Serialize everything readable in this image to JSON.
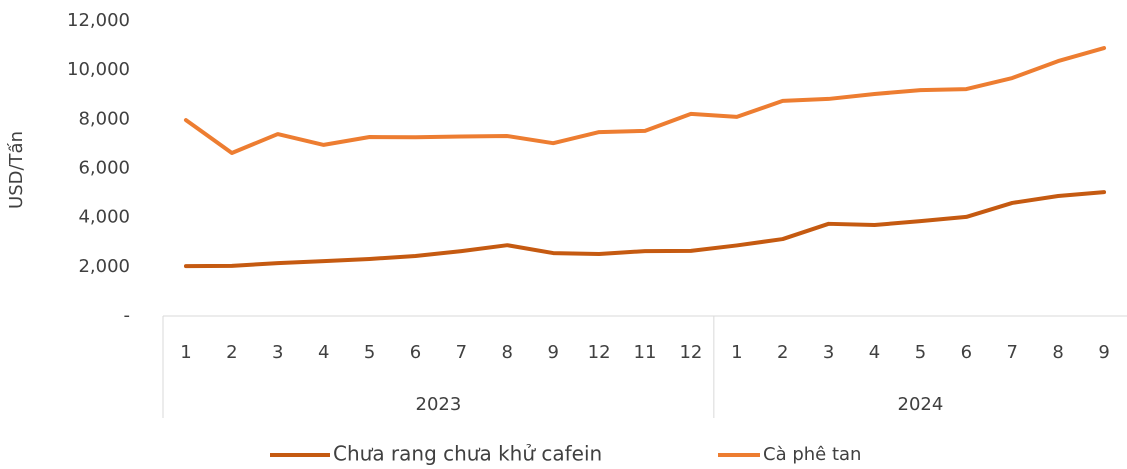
{
  "chart_data": {
    "type": "line",
    "y_label": "USD/Tấn",
    "groups": [
      {
        "label": "2023",
        "categories": [
          "1",
          "2",
          "3",
          "4",
          "5",
          "6",
          "7",
          "8",
          "9",
          "12",
          "11",
          "12"
        ]
      },
      {
        "label": "2024",
        "categories": [
          "1",
          "2",
          "3",
          "4",
          "5",
          "6",
          "7",
          "8",
          "9"
        ]
      }
    ],
    "series": [
      {
        "name": "Chưa rang chưa khử cafein",
        "color": "#c55a11",
        "values": [
          2030,
          2040,
          2150,
          2230,
          2320,
          2440,
          2640,
          2880,
          2560,
          2520,
          2640,
          2650,
          2870,
          3130,
          3750,
          3700,
          3860,
          4030,
          4600,
          4880,
          5040
        ]
      },
      {
        "name": "Cà phê tan",
        "color": "#ed7d31",
        "values": [
          7970,
          6630,
          7400,
          6960,
          7280,
          7270,
          7300,
          7320,
          7030,
          7480,
          7530,
          8220,
          8100,
          8750,
          8830,
          9030,
          9190,
          9230,
          9680,
          10370,
          10900
        ]
      }
    ],
    "ylim": [
      0,
      12000
    ],
    "yticks": [
      {
        "value": 0,
        "label": "-"
      },
      {
        "value": 2000,
        "label": "2,000"
      },
      {
        "value": 4000,
        "label": "4,000"
      },
      {
        "value": 6000,
        "label": "6,000"
      },
      {
        "value": 8000,
        "label": "8,000"
      },
      {
        "value": 10000,
        "label": "10,000"
      },
      {
        "value": 12000,
        "label": "12,000"
      }
    ],
    "legend": "bottom"
  }
}
